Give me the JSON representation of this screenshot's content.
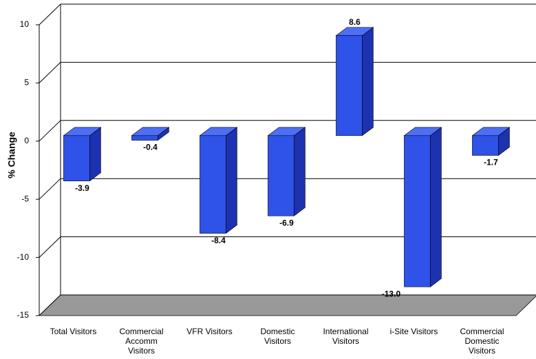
{
  "chart_data": {
    "type": "bar3d",
    "y_label": "% Change",
    "categories": [
      "Total Visitors",
      "Commercial Accomm Visitors",
      "VFR Visitors",
      "Domestic Visitors",
      "International Visitors",
      "i-Site Visitors",
      "Commercial Domestic Visitors"
    ],
    "values": [
      -3.9,
      -0.4,
      -8.4,
      -6.9,
      8.6,
      -13.0,
      -1.7
    ],
    "value_labels": [
      "-3.9",
      "-0.4",
      "-8.4",
      "-6.9",
      "8.6",
      "-13.0",
      "-1.7"
    ],
    "color": "#2f52e8",
    "ylim": [
      -15,
      10
    ],
    "yticks": [
      -15,
      -10,
      -5,
      0,
      5,
      10
    ],
    "grid": true
  }
}
